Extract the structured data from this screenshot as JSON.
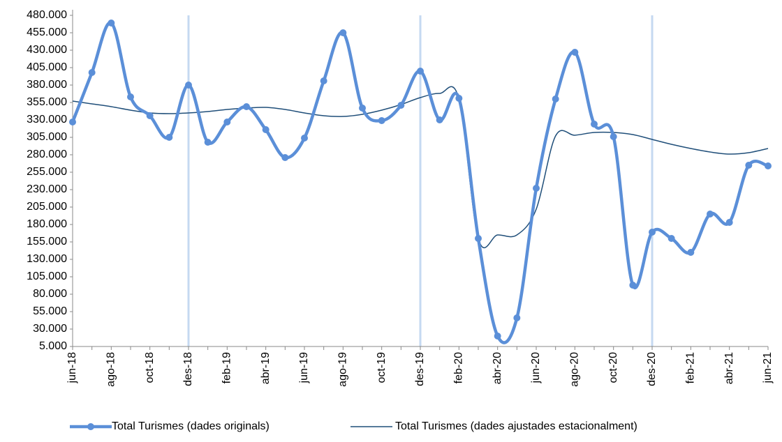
{
  "chart_data": {
    "type": "line",
    "categories": [
      "jun-18",
      null,
      "ago-18",
      null,
      "oct-18",
      null,
      "des-18",
      null,
      "feb-19",
      null,
      "abr-19",
      null,
      "jun-19",
      null,
      "ago-19",
      null,
      "oct-19",
      null,
      "des-19",
      null,
      "feb-20",
      null,
      "abr-20",
      null,
      "jun-20",
      null,
      "ago-20",
      null,
      "oct-20",
      null,
      "des-20",
      null,
      "feb-21",
      null,
      "abr-21",
      null,
      "jun-21"
    ],
    "series": [
      {
        "name": "Total Turismes (dades originals)",
        "color": "#5b8fd8",
        "values": [
          327000,
          398000,
          469000,
          363000,
          336000,
          305000,
          380000,
          298000,
          327000,
          349000,
          316000,
          276000,
          304000,
          386000,
          455000,
          347000,
          329000,
          351000,
          400000,
          330000,
          361000,
          160000,
          20000,
          46000,
          232000,
          360000,
          427000,
          324000,
          306000,
          93000,
          169000,
          160000,
          140000,
          195000,
          183000,
          265000,
          264000
        ]
      },
      {
        "name": "Total Turismes (dades ajustades estacionalment)",
        "color": "#1f4e79",
        "values": [
          357000,
          353000,
          349000,
          344000,
          340000,
          339000,
          340000,
          342000,
          345000,
          347000,
          348000,
          345000,
          340000,
          336000,
          335000,
          338000,
          344000,
          352000,
          362000,
          368000,
          360000,
          160000,
          165000,
          165000,
          202000,
          307000,
          308000,
          312000,
          312000,
          309000,
          302000,
          295000,
          289000,
          284000,
          281000,
          283000,
          289000
        ]
      }
    ],
    "ylim": [
      5000,
      480000
    ],
    "yticks": [
      {
        "value": 5000,
        "label": "5.000"
      },
      {
        "value": 30000,
        "label": "30.000"
      },
      {
        "value": 55000,
        "label": "55.000"
      },
      {
        "value": 80000,
        "label": "80.000"
      },
      {
        "value": 105000,
        "label": "105.000"
      },
      {
        "value": 130000,
        "label": "130.000"
      },
      {
        "value": 155000,
        "label": "155.000"
      },
      {
        "value": 180000,
        "label": "180.000"
      },
      {
        "value": 205000,
        "label": "205.000"
      },
      {
        "value": 230000,
        "label": "230.000"
      },
      {
        "value": 255000,
        "label": "255.000"
      },
      {
        "value": 280000,
        "label": "280.000"
      },
      {
        "value": 305000,
        "label": "305.000"
      },
      {
        "value": 330000,
        "label": "330.000"
      },
      {
        "value": 355000,
        "label": "355.000"
      },
      {
        "value": 380000,
        "label": "380.000"
      },
      {
        "value": 405000,
        "label": "405.000"
      },
      {
        "value": 430000,
        "label": "430.000"
      },
      {
        "value": 455000,
        "label": "455.000"
      },
      {
        "value": 480000,
        "label": "480.000"
      }
    ],
    "legend": "bottom"
  }
}
